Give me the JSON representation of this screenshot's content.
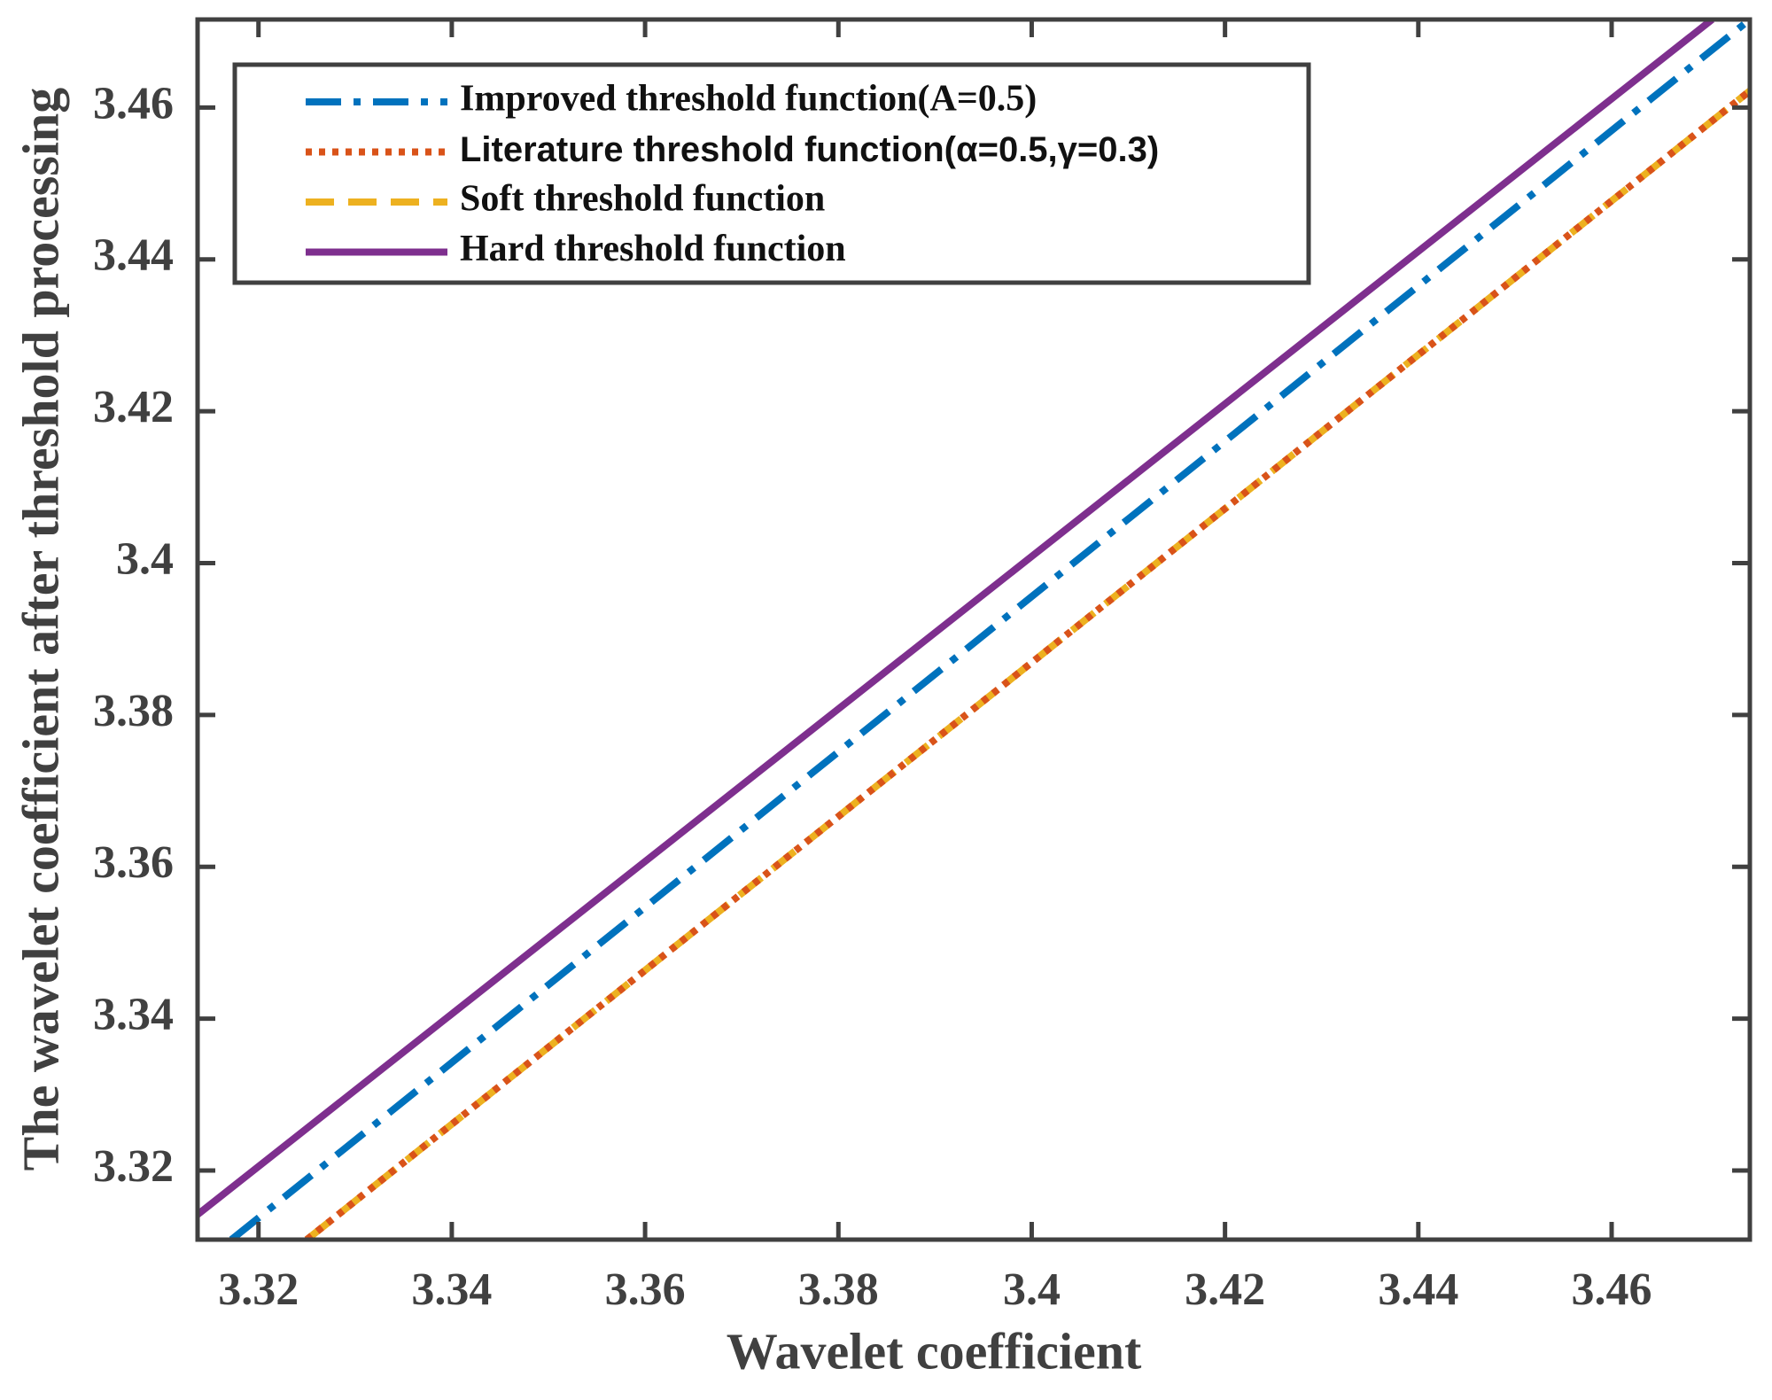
{
  "chart_data": {
    "type": "line",
    "xlabel": "Wavelet coefficient",
    "ylabel": "The wavelet coefficient after threshold processing",
    "xlim": [
      3.3137,
      3.4743
    ],
    "ylim": [
      3.3109,
      3.4716
    ],
    "xticks": [
      3.32,
      3.34,
      3.36,
      3.38,
      3.4,
      3.42,
      3.44,
      3.46
    ],
    "yticks": [
      3.32,
      3.34,
      3.36,
      3.38,
      3.4,
      3.42,
      3.44,
      3.46
    ],
    "legend": "upper left",
    "series": [
      {
        "name": "Improved threshold function(A=0.5)",
        "color": "#0072bd",
        "style": "dashdot",
        "x": [
          3.3172,
          3.4743
        ],
        "values": [
          3.3109,
          3.4716
        ]
      },
      {
        "name": "Literature threshold function(α=0.5,γ=0.3)",
        "color": "#d95319",
        "style": "dotted",
        "x": [
          3.325,
          3.4743
        ],
        "values": [
          3.3109,
          3.4622
        ]
      },
      {
        "name": "Soft threshold function",
        "color": "#edb120",
        "style": "dashed",
        "x": [
          3.325,
          3.4743
        ],
        "values": [
          3.3109,
          3.4622
        ]
      },
      {
        "name": "Hard threshold function",
        "color": "#7e2f8e",
        "style": "solid",
        "x": [
          3.3137,
          3.4704
        ],
        "values": [
          3.3142,
          3.4716
        ]
      }
    ]
  }
}
